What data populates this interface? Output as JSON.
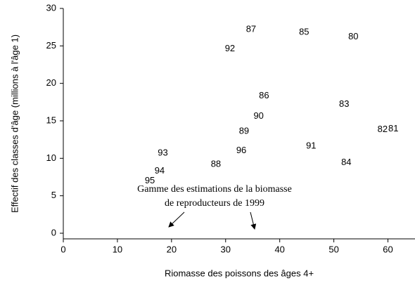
{
  "chart_data": {
    "type": "scatter",
    "x_label": "Riomasse des poissons des âges 4+",
    "y_label": "Effectif des classes d'âge (millions à   l'âge 1)",
    "annotations": [
      "Gamme des estimations de la biomasse",
      "de reproducteurs de 1999"
    ],
    "point_labels": [
      "87",
      "85",
      "80",
      "92",
      "86",
      "83",
      "90",
      "89",
      "82",
      "81",
      "93",
      "96",
      "91",
      "88",
      "84",
      "94",
      "95"
    ],
    "x": [
      34.7,
      44.5,
      53.6,
      30.8,
      37.1,
      51.9,
      36.1,
      33.4,
      59.0,
      61.0,
      18.4,
      32.9,
      45.8,
      28.2,
      52.3,
      17.8,
      16.0
    ],
    "values": [
      27.2,
      26.8,
      26.2,
      24.6,
      18.3,
      17.2,
      15.6,
      13.6,
      13.8,
      13.9,
      10.7,
      11.0,
      11.6,
      9.2,
      9.4,
      8.3,
      7.0
    ],
    "color": "#000000",
    "xlim": [
      0,
      65
    ],
    "ylim": [
      -0.75,
      30
    ],
    "xticks": [
      0,
      10,
      20,
      30,
      40,
      50,
      60
    ],
    "yticks": [
      0,
      5,
      10,
      15,
      20,
      25,
      30
    ],
    "grid": false
  }
}
